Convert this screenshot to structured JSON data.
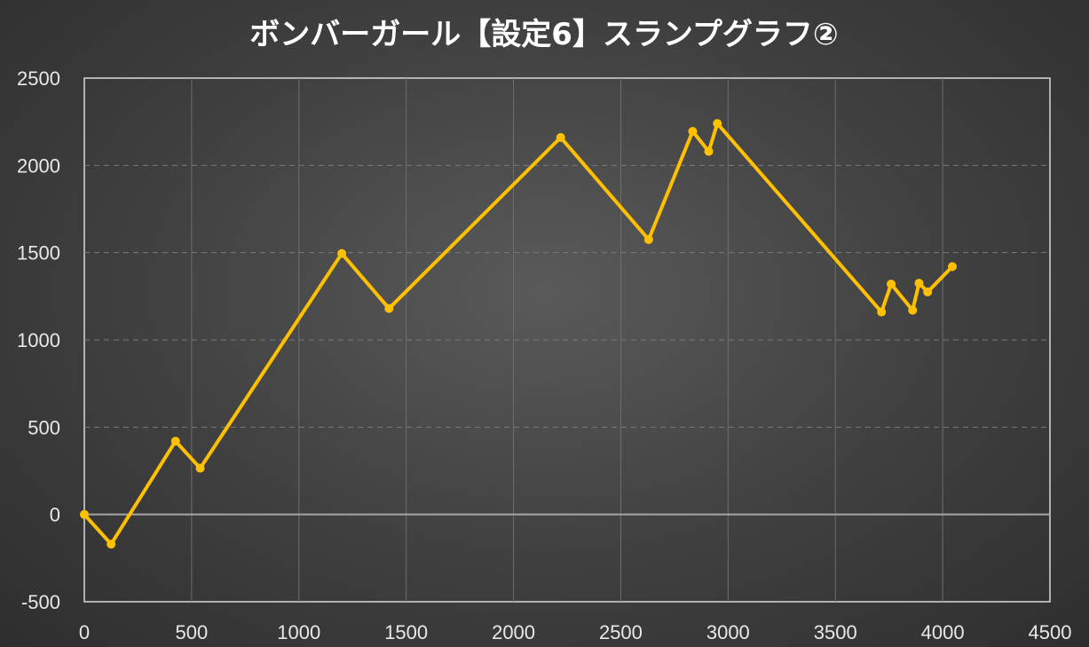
{
  "chart_data": {
    "type": "line",
    "title": "ボンバーガール【設定6】スランプグラフ②",
    "xlabel": "",
    "ylabel": "",
    "xlim": [
      0,
      4500
    ],
    "ylim": [
      -500,
      2500
    ],
    "x_ticks": [
      "0",
      "500",
      "1000",
      "1500",
      "2000",
      "2500",
      "3000",
      "3500",
      "4000",
      "4500"
    ],
    "y_ticks": [
      "2500",
      "2000",
      "1500",
      "1000",
      "500",
      "0",
      "-500"
    ],
    "grid": true,
    "legend": "none",
    "series": [
      {
        "color": "#ffc000",
        "points": [
          {
            "x": 0,
            "y": 0
          },
          {
            "x": 125,
            "y": -170
          },
          {
            "x": 425,
            "y": 420
          },
          {
            "x": 540,
            "y": 265
          },
          {
            "x": 1200,
            "y": 1495
          },
          {
            "x": 1420,
            "y": 1180
          },
          {
            "x": 2220,
            "y": 2160
          },
          {
            "x": 2630,
            "y": 1575
          },
          {
            "x": 2835,
            "y": 2195
          },
          {
            "x": 2910,
            "y": 2080
          },
          {
            "x": 2950,
            "y": 2240
          },
          {
            "x": 3715,
            "y": 1160
          },
          {
            "x": 3760,
            "y": 1320
          },
          {
            "x": 3860,
            "y": 1170
          },
          {
            "x": 3890,
            "y": 1325
          },
          {
            "x": 3930,
            "y": 1275
          },
          {
            "x": 4045,
            "y": 1420
          }
        ]
      }
    ]
  }
}
